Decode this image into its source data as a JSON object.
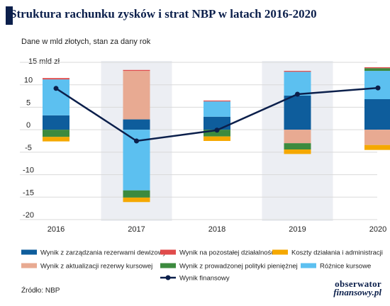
{
  "header": {
    "title": "Struktura rachunku zysków i strat NBP w latach 2016-2020",
    "subtitle": "Dane w mld złotych, stan za dany rok"
  },
  "footer": {
    "source": "Źródło: NBP",
    "brand_line1": "obserwator",
    "brand_line2": "finansowy.pl"
  },
  "colors": {
    "title": "#0b1f4b",
    "shade": "#eceef3",
    "grid": "#d9d9d9"
  },
  "chart_data": {
    "type": "bar",
    "stacked": true,
    "ylabel": "15 mld zł",
    "ylim": [
      -20,
      15
    ],
    "yticks": [
      15,
      10,
      5,
      0,
      -5,
      -10,
      -15,
      -20
    ],
    "ytick_labels": [
      "15 mld zł",
      "10",
      "5",
      "0",
      "-5",
      "-10",
      "-15",
      "-20"
    ],
    "categories": [
      "2016",
      "2017",
      "2018",
      "2019",
      "2020"
    ],
    "shaded_categories": [
      "2017",
      "2019"
    ],
    "grid": true,
    "legend_position": "bottom",
    "series": [
      {
        "name": "Wynik z zarządzania rezerwami dewizowymi",
        "color": "#0e5d9c",
        "values": [
          3.2,
          2.3,
          2.9,
          7.6,
          6.8
        ]
      },
      {
        "name": "Wynik z aktualizacji rezerwy kursowej",
        "color": "#e8aa92",
        "values": [
          0,
          10.8,
          0,
          -3.0,
          -3.4
        ]
      },
      {
        "name": "Różnice kursowe",
        "color": "#5cc0f0",
        "values": [
          8.0,
          -13.5,
          3.4,
          5.3,
          6.3
        ]
      },
      {
        "name": "Wynik z prowadzonej polityki pieniężnej",
        "color": "#3c8a3e",
        "values": [
          -1.6,
          -1.6,
          -1.5,
          -1.4,
          0.6
        ]
      },
      {
        "name": "Wynik na pozostałej działalności",
        "color": "#e04b4b",
        "values": [
          0.3,
          0.2,
          0.2,
          0.2,
          0.2
        ]
      },
      {
        "name": "Koszty działania i administracji",
        "color": "#f5a800",
        "values": [
          -1.0,
          -1.0,
          -1.0,
          -1.0,
          -1.1
        ]
      }
    ],
    "line": {
      "name": "Wynik finansowy",
      "color": "#0b1f4b",
      "values": [
        9.2,
        -2.5,
        -0.1,
        7.9,
        9.3
      ]
    },
    "legend_order": [
      "Wynik z zarządzania rezerwami dewizowymi",
      "Wynik na pozostałej działalności",
      "Koszty działania i administracji",
      "Wynik z aktualizacji rezerwy kursowej",
      "Wynik z prowadzonej polityki pieniężnej",
      "Różnice kursowe",
      "Wynik finansowy"
    ]
  }
}
